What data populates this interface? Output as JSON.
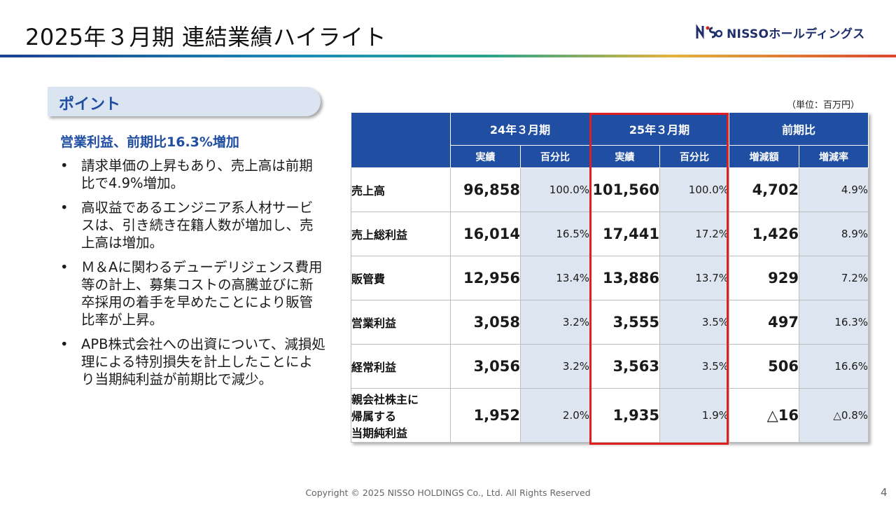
{
  "title": "2025年３月期 連結業績ハイライト",
  "logo": {
    "text": "NISSOホールディングス",
    "brand_color": "#1f2f6b"
  },
  "point": {
    "tab_label": "ポイント",
    "headline": "営業利益、前期比16.3%増加",
    "bullets": [
      "請求単価の上昇もあり、売上高は前期比で4.9%増加。",
      "高収益であるエンジニア系人材サービスは、引き続き在籍人数が増加し、売上高は増加。",
      "Ｍ＆Aに関わるデューデリジェンス費用等の計上、募集コストの高騰並びに新卒採用の着手を早めたことにより販管比率が上昇。",
      "APB株式会社への出資について、減損処理による特別損失を計上したことにより当期純利益が前期比で減少。"
    ]
  },
  "table": {
    "unit": "（単位：百万円）",
    "group_headers": [
      "24年３月期",
      "25年３月期",
      "前期比"
    ],
    "sub_headers": [
      "実績",
      "百分比",
      "実績",
      "百分比",
      "増減額",
      "増減率"
    ],
    "rows": [
      {
        "label": [
          "売上高"
        ],
        "v24": "96,858",
        "p24": "100.0%",
        "v25": "101,560",
        "p25": "100.0%",
        "diff": "4,702",
        "rate": "4.9%"
      },
      {
        "label": [
          "売上総利益"
        ],
        "v24": "16,014",
        "p24": "16.5%",
        "v25": "17,441",
        "p25": "17.2%",
        "diff": "1,426",
        "rate": "8.9%"
      },
      {
        "label": [
          "販管費"
        ],
        "v24": "12,956",
        "p24": "13.4%",
        "v25": "13,886",
        "p25": "13.7%",
        "diff": "929",
        "rate": "7.2%"
      },
      {
        "label": [
          "営業利益"
        ],
        "v24": "3,058",
        "p24": "3.2%",
        "v25": "3,555",
        "p25": "3.5%",
        "diff": "497",
        "rate": "16.3%"
      },
      {
        "label": [
          "経常利益"
        ],
        "v24": "3,056",
        "p24": "3.2%",
        "v25": "3,563",
        "p25": "3.5%",
        "diff": "506",
        "rate": "16.6%"
      },
      {
        "label": [
          "親会社株主に",
          "帰属する",
          "当期純利益"
        ],
        "v24": "1,952",
        "p24": "2.0%",
        "v25": "1,935",
        "p25": "1.9%",
        "diff": "△16",
        "rate": "△0.8%"
      }
    ],
    "header_color": "#1f4ea3",
    "highlight_color": "#e02020"
  },
  "footer": {
    "copyright": "Copyright © 2025 NISSO HOLDINGS Co., Ltd. All Rights Reserved",
    "page_number": "4"
  }
}
